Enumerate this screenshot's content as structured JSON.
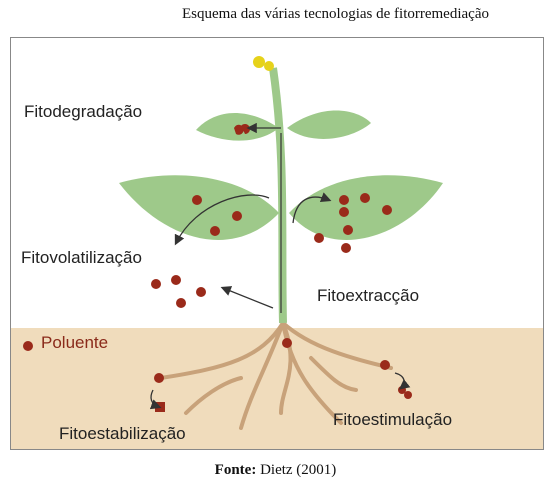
{
  "figure": {
    "title": "Esquema das várias tecnologias de fitorremediação",
    "source_label": "Fonte:",
    "source_value": " Dietz (2001)"
  },
  "labels": {
    "fitodegradacao": "Fitodegradação",
    "fitovolatilizacao": "Fitovolatilização",
    "fitoextraccao": "Fitoextracção",
    "poluente": "Poluente",
    "fitoestabilizacao": "Fitoestabilização",
    "fitoestimulacao": "Fitoestimulação"
  },
  "colors": {
    "soil": "#f0dcbc",
    "leaf": "#9ec98a",
    "root": "#c8a27a",
    "pollutant": "#9a2a1a",
    "flower": "#e6d21a"
  }
}
